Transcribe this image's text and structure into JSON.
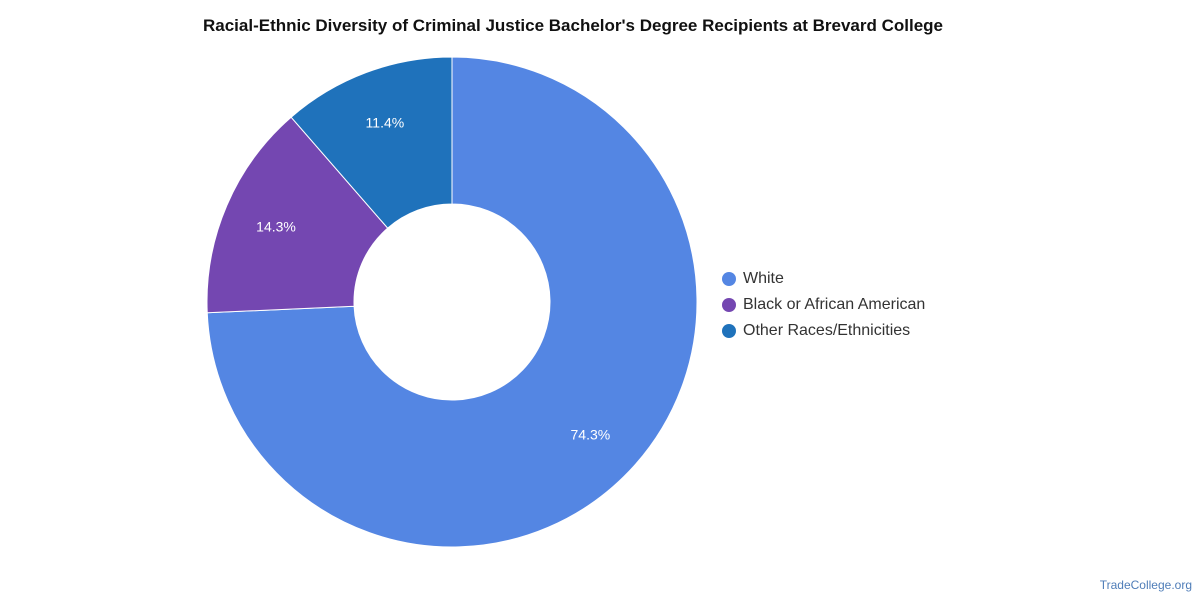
{
  "chart_data": {
    "type": "pie",
    "subtype": "donut",
    "title": "Racial-Ethnic Diversity of Criminal Justice Bachelor's Degree Recipients at Brevard College",
    "slices": [
      {
        "name": "White",
        "value": 74.3,
        "label": "74.3%",
        "color": "#5486e3"
      },
      {
        "name": "Black or African American",
        "value": 14.3,
        "label": "14.3%",
        "color": "#7447b1"
      },
      {
        "name": "Other Races/Ethnicities",
        "value": 11.4,
        "label": "11.4%",
        "color": "#1f72bb"
      }
    ],
    "legend_position": "right"
  },
  "source": "TradeCollege.org"
}
